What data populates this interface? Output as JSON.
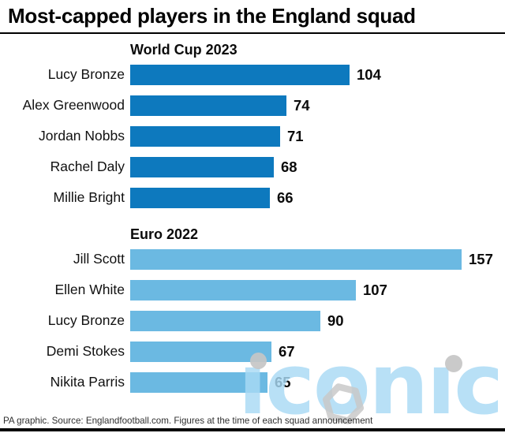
{
  "title": "Most-capped players in the England squad",
  "footer": "PA graphic. Source: Englandfootball.com. Figures at the time of each squad announcement",
  "colors": {
    "world_cup_bar": "#0d79be",
    "euro_bar": "#6bb9e2",
    "divider": "#000000",
    "watermark_blue": "#a9daf5",
    "watermark_grey": "#c6c6c6"
  },
  "watermark": {
    "text": "iconic",
    "display_text": "ıconıc"
  },
  "chart_data": {
    "type": "bar",
    "orientation": "horizontal",
    "value_labels": true,
    "xlim": [
      0,
      157
    ],
    "sections": [
      {
        "title": "World Cup 2023",
        "bar_color": "#0d79be",
        "categories": [
          "Lucy Bronze",
          "Alex Greenwood",
          "Jordan Nobbs",
          "Rachel Daly",
          "Millie Bright"
        ],
        "values": [
          104,
          74,
          71,
          68,
          66
        ]
      },
      {
        "title": "Euro 2022",
        "bar_color": "#6bb9e2",
        "categories": [
          "Jill Scott",
          "Ellen White",
          "Lucy Bronze",
          "Demi Stokes",
          "Nikita Parris"
        ],
        "values": [
          157,
          107,
          90,
          67,
          65
        ]
      }
    ]
  }
}
